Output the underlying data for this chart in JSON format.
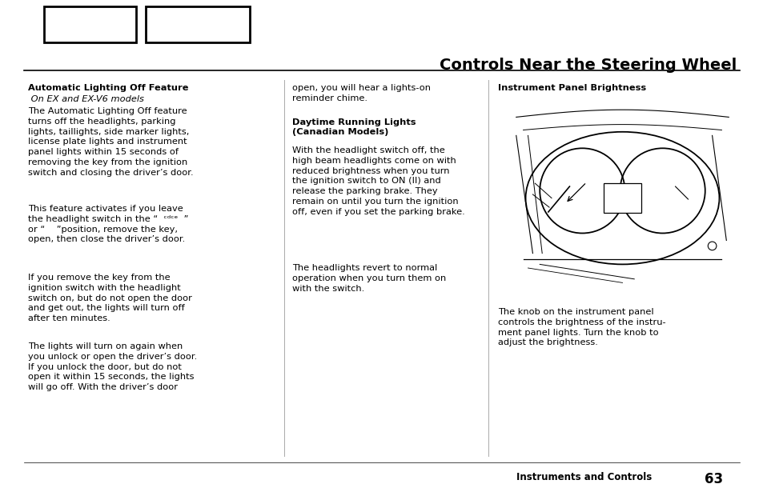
{
  "title": "Controls Near the Steering Wheel",
  "footer_text": "Instruments and Controls",
  "footer_page": "63",
  "background_color": "#ffffff",
  "text_color": "#000000",
  "col1_header_bold": "Automatic Lighting Off Feature",
  "col1_header_italic": " On EX and EX-V6 models",
  "col1_para1": "The Automatic Lighting Off feature\nturns off the headlights, parking\nlights, taillights, side marker lights,\nlicense plate lights and instrument\npanel lights within 15 seconds of\nremoving the key from the ignition\nswitch and closing the driver’s door.",
  "col1_para2": "This feature activates if you leave\nthe headlight switch in the “  ᶜᵈᶜᵉ  ”\nor “    ”position, remove the key,\nopen, then close the driver’s door.",
  "col1_para3": "If you remove the key from the\nignition switch with the headlight\nswitch on, but do not open the door\nand get out, the lights will turn off\nafter ten minutes.",
  "col1_para4": "The lights will turn on again when\nyou unlock or open the driver’s door.\nIf you unlock the door, but do not\nopen it within 15 seconds, the lights\nwill go off. With the driver’s door",
  "col2_para1": "open, you will hear a lights-on\nreminder chime.",
  "col2_header_bold": "Daytime Running Lights\n(Canadian Models)",
  "col2_para2": "With the headlight switch off, the\nhigh beam headlights come on with\nreduced brightness when you turn\nthe ignition switch to ON (II) and\nrelease the parking brake. They\nremain on until you turn the ignition\noff, even if you set the parking brake.",
  "col2_para3": "The headlights revert to normal\noperation when you turn them on\nwith the switch.",
  "col3_header_bold": "Instrument Panel Brightness",
  "col3_para1": "The knob on the instrument panel\ncontrols the brightness of the instru-\nment panel lights. Turn the knob to\nadjust the brightness."
}
